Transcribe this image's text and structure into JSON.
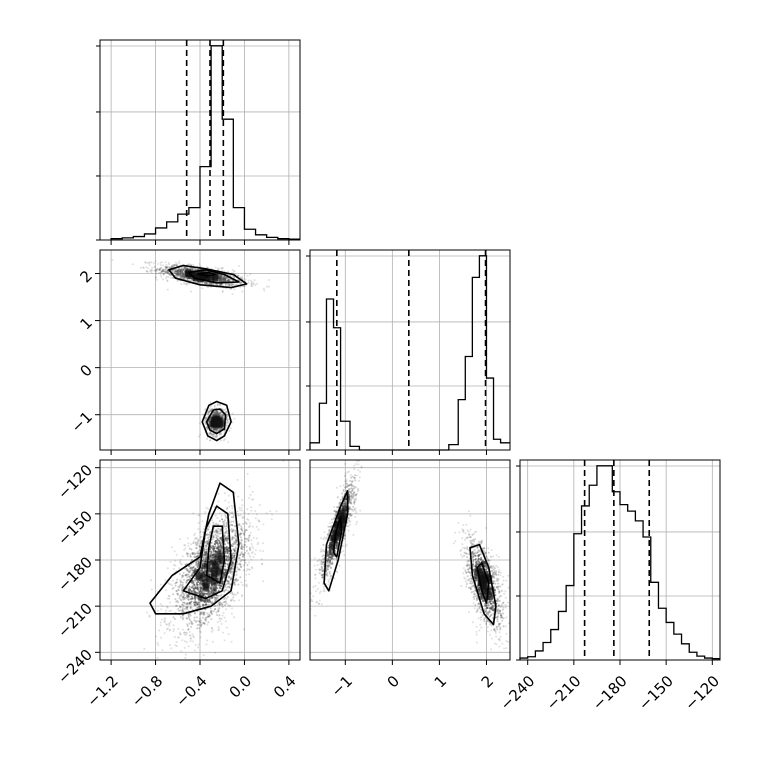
{
  "chart_data": {
    "type": "corner",
    "title": "",
    "grid": true,
    "colors": {
      "line": "#000000",
      "grid": "#b0b0b0",
      "points": "#555555"
    },
    "params": [
      {
        "range": [
          -1.3,
          0.5
        ],
        "ticks": [
          -1.2,
          -0.8,
          -0.4,
          0.0,
          0.4
        ],
        "tick_labels": [
          "−1.2",
          "−0.8",
          "−0.4",
          "0.0",
          "0.4"
        ],
        "quantiles": [
          -0.52,
          -0.31,
          -0.19
        ]
      },
      {
        "range": [
          -1.75,
          2.5
        ],
        "ticks": [
          -1,
          0,
          1,
          2
        ],
        "tick_labels": [
          "−1",
          "0",
          "1",
          "2"
        ],
        "quantiles": [
          -1.18,
          0.35,
          1.98
        ]
      },
      {
        "range": [
          -245,
          -115
        ],
        "ticks": [
          -240,
          -210,
          -180,
          -150,
          -120
        ],
        "tick_labels": [
          "−240",
          "−210",
          "−180",
          "−150",
          "−120"
        ],
        "quantiles": [
          -203,
          -184,
          -161
        ]
      }
    ],
    "marginals": [
      {
        "param": 0,
        "bin_edges": [
          -1.2,
          -1.1,
          -1.0,
          -0.9,
          -0.8,
          -0.7,
          -0.6,
          -0.5,
          -0.4,
          -0.3,
          -0.2,
          -0.1,
          0.0,
          0.1,
          0.2,
          0.3,
          0.4,
          0.5
        ],
        "counts": [
          3,
          5,
          8,
          14,
          28,
          42,
          60,
          75,
          170,
          450,
          280,
          75,
          25,
          12,
          6,
          3,
          2
        ]
      },
      {
        "param": 1,
        "bin_edges": [
          -1.75,
          -1.55,
          -1.4,
          -1.25,
          -1.1,
          -0.9,
          -0.7,
          -0.4,
          1.2,
          1.4,
          1.55,
          1.7,
          1.85,
          2.0,
          2.15,
          2.3,
          2.5
        ],
        "counts": [
          20,
          130,
          420,
          340,
          80,
          10,
          0,
          0,
          15,
          140,
          260,
          480,
          540,
          200,
          30,
          20
        ]
      },
      {
        "param": 2,
        "bin_edges": [
          -245,
          -240,
          -235,
          -230,
          -225,
          -220,
          -215,
          -210,
          -205,
          -200,
          -195,
          -190,
          -185,
          -180,
          -175,
          -170,
          -165,
          -160,
          -155,
          -150,
          -145,
          -140,
          -135,
          -130,
          -125,
          -120,
          -115
        ],
        "counts": [
          3,
          5,
          14,
          27,
          47,
          75,
          115,
          195,
          238,
          270,
          300,
          300,
          260,
          240,
          230,
          215,
          190,
          120,
          80,
          58,
          40,
          25,
          12,
          6,
          3,
          2
        ]
      }
    ],
    "joints": [
      {
        "x_param": 0,
        "y_param": 1,
        "clusters": [
          {
            "center": [
              -0.38,
              1.95
            ],
            "spread": [
              0.2,
              0.12
            ],
            "corr": -0.6,
            "n": 1200
          },
          {
            "center": [
              -0.25,
              -1.15
            ],
            "spread": [
              0.05,
              0.15
            ],
            "corr": 0.0,
            "n": 700
          }
        ],
        "contours": [
          [
            [
              -0.68,
              2.08
            ],
            [
              -0.55,
              2.17
            ],
            [
              -0.35,
              2.1
            ],
            [
              -0.1,
              1.98
            ],
            [
              0.02,
              1.78
            ],
            [
              -0.12,
              1.7
            ],
            [
              -0.4,
              1.76
            ],
            [
              -0.62,
              1.9
            ]
          ],
          [
            [
              -0.5,
              2.02
            ],
            [
              -0.35,
              2.08
            ],
            [
              -0.18,
              1.98
            ],
            [
              -0.05,
              1.82
            ],
            [
              -0.25,
              1.8
            ],
            [
              -0.45,
              1.9
            ]
          ],
          [
            [
              -0.42,
              1.99
            ],
            [
              -0.32,
              2.02
            ],
            [
              -0.26,
              1.98
            ],
            [
              -0.34,
              1.95
            ]
          ],
          [
            [
              -0.38,
              -1.15
            ],
            [
              -0.32,
              -0.8
            ],
            [
              -0.25,
              -0.72
            ],
            [
              -0.16,
              -0.8
            ],
            [
              -0.12,
              -1.15
            ],
            [
              -0.18,
              -1.45
            ],
            [
              -0.25,
              -1.55
            ],
            [
              -0.33,
              -1.45
            ]
          ],
          [
            [
              -0.34,
              -1.15
            ],
            [
              -0.28,
              -0.9
            ],
            [
              -0.22,
              -0.88
            ],
            [
              -0.17,
              -1.0
            ],
            [
              -0.18,
              -1.3
            ],
            [
              -0.25,
              -1.4
            ],
            [
              -0.31,
              -1.33
            ]
          ]
        ]
      },
      {
        "x_param": 0,
        "y_param": 2,
        "clusters": [
          {
            "center": [
              -0.3,
              -188
            ],
            "spread": [
              0.18,
              19
            ],
            "corr": 0.55,
            "n": 2200
          }
        ],
        "contours": [
          [
            [
              -0.85,
              -208
            ],
            [
              -0.65,
              -190
            ],
            [
              -0.4,
              -178
            ],
            [
              -0.32,
              -150
            ],
            [
              -0.22,
              -130
            ],
            [
              -0.1,
              -136
            ],
            [
              -0.05,
              -170
            ],
            [
              -0.12,
              -200
            ],
            [
              -0.3,
              -210
            ],
            [
              -0.55,
              -215
            ],
            [
              -0.8,
              -215
            ]
          ],
          [
            [
              -0.55,
              -200
            ],
            [
              -0.4,
              -185
            ],
            [
              -0.35,
              -160
            ],
            [
              -0.25,
              -145
            ],
            [
              -0.15,
              -150
            ],
            [
              -0.12,
              -180
            ],
            [
              -0.2,
              -200
            ],
            [
              -0.35,
              -205
            ]
          ],
          [
            [
              -0.34,
              -190
            ],
            [
              -0.32,
              -172
            ],
            [
              -0.28,
              -158
            ],
            [
              -0.2,
              -158
            ],
            [
              -0.18,
              -180
            ],
            [
              -0.22,
              -195
            ]
          ]
        ]
      },
      {
        "x_param": 1,
        "y_param": 2,
        "clusters": [
          {
            "center": [
              -1.15,
              -160
            ],
            "spread": [
              0.2,
              18
            ],
            "corr": 0.85,
            "n": 900
          },
          {
            "center": [
              1.95,
              -195
            ],
            "spread": [
              0.22,
              16
            ],
            "corr": -0.6,
            "n": 900
          }
        ],
        "contours": [
          [
            [
              -1.45,
              -195
            ],
            [
              -1.4,
              -170
            ],
            [
              -1.1,
              -145
            ],
            [
              -0.95,
              -135
            ],
            [
              -0.95,
              -150
            ],
            [
              -1.15,
              -180
            ],
            [
              -1.35,
              -200
            ]
          ],
          [
            [
              -1.25,
              -175
            ],
            [
              -1.2,
              -162
            ],
            [
              -1.1,
              -152
            ],
            [
              -1.08,
              -162
            ],
            [
              -1.18,
              -178
            ]
          ],
          [
            [
              1.65,
              -172
            ],
            [
              1.85,
              -170
            ],
            [
              2.05,
              -185
            ],
            [
              2.2,
              -210
            ],
            [
              2.15,
              -222
            ],
            [
              1.95,
              -215
            ],
            [
              1.7,
              -190
            ]
          ],
          [
            [
              1.8,
              -185
            ],
            [
              1.9,
              -182
            ],
            [
              2.05,
              -195
            ],
            [
              2.0,
              -208
            ],
            [
              1.9,
              -200
            ]
          ]
        ]
      }
    ]
  }
}
